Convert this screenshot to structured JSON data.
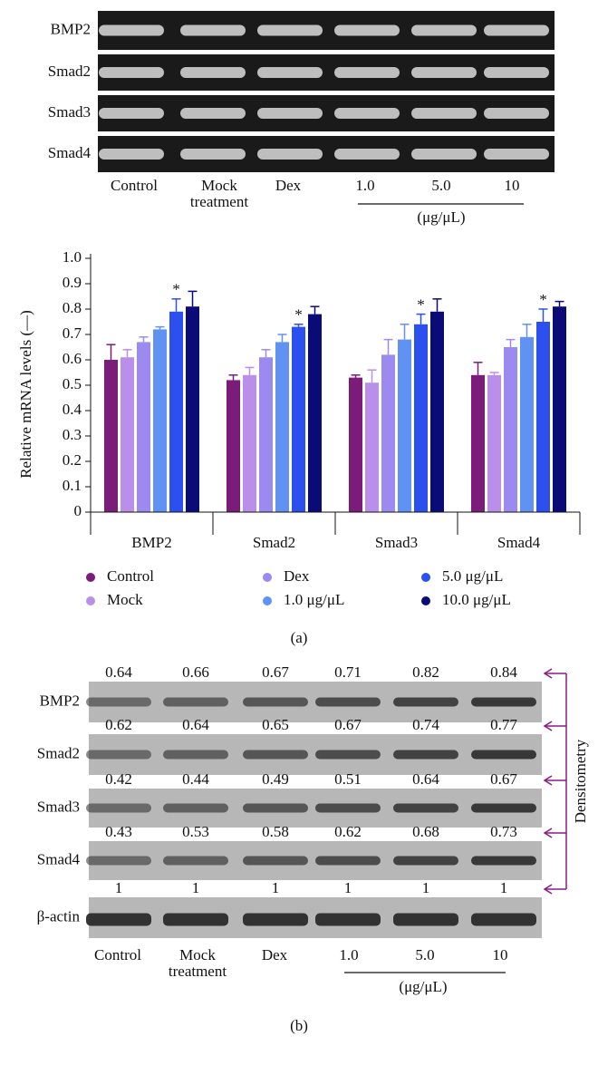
{
  "panel_a": {
    "rows": [
      "BMP2",
      "Smad2",
      "Smad3",
      "Smad4"
    ],
    "lanes": [
      "Control",
      "Mock treatment",
      "Dex",
      "1.0",
      "5.0",
      "10"
    ],
    "unit": "(μg/μL)",
    "label": "(a)"
  },
  "chart_data": {
    "type": "bar",
    "y_label": "Relative mRNA levels (—)",
    "categories": [
      "BMP2",
      "Smad2",
      "Smad3",
      "Smad4"
    ],
    "series": [
      {
        "name": "Control",
        "color": "#7b1c7b",
        "values": [
          0.6,
          0.52,
          0.53,
          0.54
        ],
        "errors": [
          0.06,
          0.02,
          0.01,
          0.05
        ]
      },
      {
        "name": "Mock",
        "color": "#b98fea",
        "values": [
          0.61,
          0.54,
          0.51,
          0.54
        ],
        "errors": [
          0.03,
          0.03,
          0.05,
          0.01
        ]
      },
      {
        "name": "Dex",
        "color": "#9c8af0",
        "values": [
          0.67,
          0.61,
          0.62,
          0.65
        ],
        "errors": [
          0.02,
          0.03,
          0.06,
          0.03
        ]
      },
      {
        "name": "1.0 μg/μL",
        "color": "#5f92f2",
        "values": [
          0.72,
          0.67,
          0.68,
          0.69
        ],
        "errors": [
          0.01,
          0.03,
          0.06,
          0.05
        ]
      },
      {
        "name": "5.0 μg/μL",
        "color": "#2b50ee",
        "values": [
          0.79,
          0.73,
          0.74,
          0.75
        ],
        "errors": [
          0.05,
          0.01,
          0.04,
          0.05
        ],
        "marker_labels": [
          "*",
          "*",
          "*",
          "*"
        ]
      },
      {
        "name": "10.0 μg/μL",
        "color": "#0b0b78",
        "values": [
          0.81,
          0.78,
          0.79,
          0.81
        ],
        "errors": [
          0.06,
          0.03,
          0.05,
          0.02
        ]
      }
    ],
    "ylim": [
      0,
      1
    ],
    "yticks": [
      0,
      0.1,
      0.2,
      0.3,
      0.4,
      0.5,
      0.6,
      0.7,
      0.8,
      0.9,
      {
        "value": 1,
        "label": "1.0"
      }
    ]
  },
  "panel_b": {
    "rows": [
      "BMP2",
      "Smad2",
      "Smad3",
      "Smad4",
      "β-actin"
    ],
    "densitometry": [
      [
        0.64,
        0.66,
        0.67,
        0.71,
        0.82,
        0.84
      ],
      [
        0.62,
        0.64,
        0.65,
        0.67,
        0.74,
        0.77
      ],
      [
        0.42,
        0.44,
        0.49,
        0.51,
        0.64,
        0.67
      ],
      [
        0.43,
        0.53,
        0.58,
        0.62,
        0.68,
        0.73
      ],
      [
        1,
        1,
        1,
        1,
        1,
        1
      ]
    ],
    "densitometry_label": "Densitometry",
    "lanes": [
      "Control",
      "Mock treatment",
      "Dex",
      "1.0",
      "5.0",
      "10"
    ],
    "unit": "(μg/μL)",
    "label": "(b)"
  }
}
